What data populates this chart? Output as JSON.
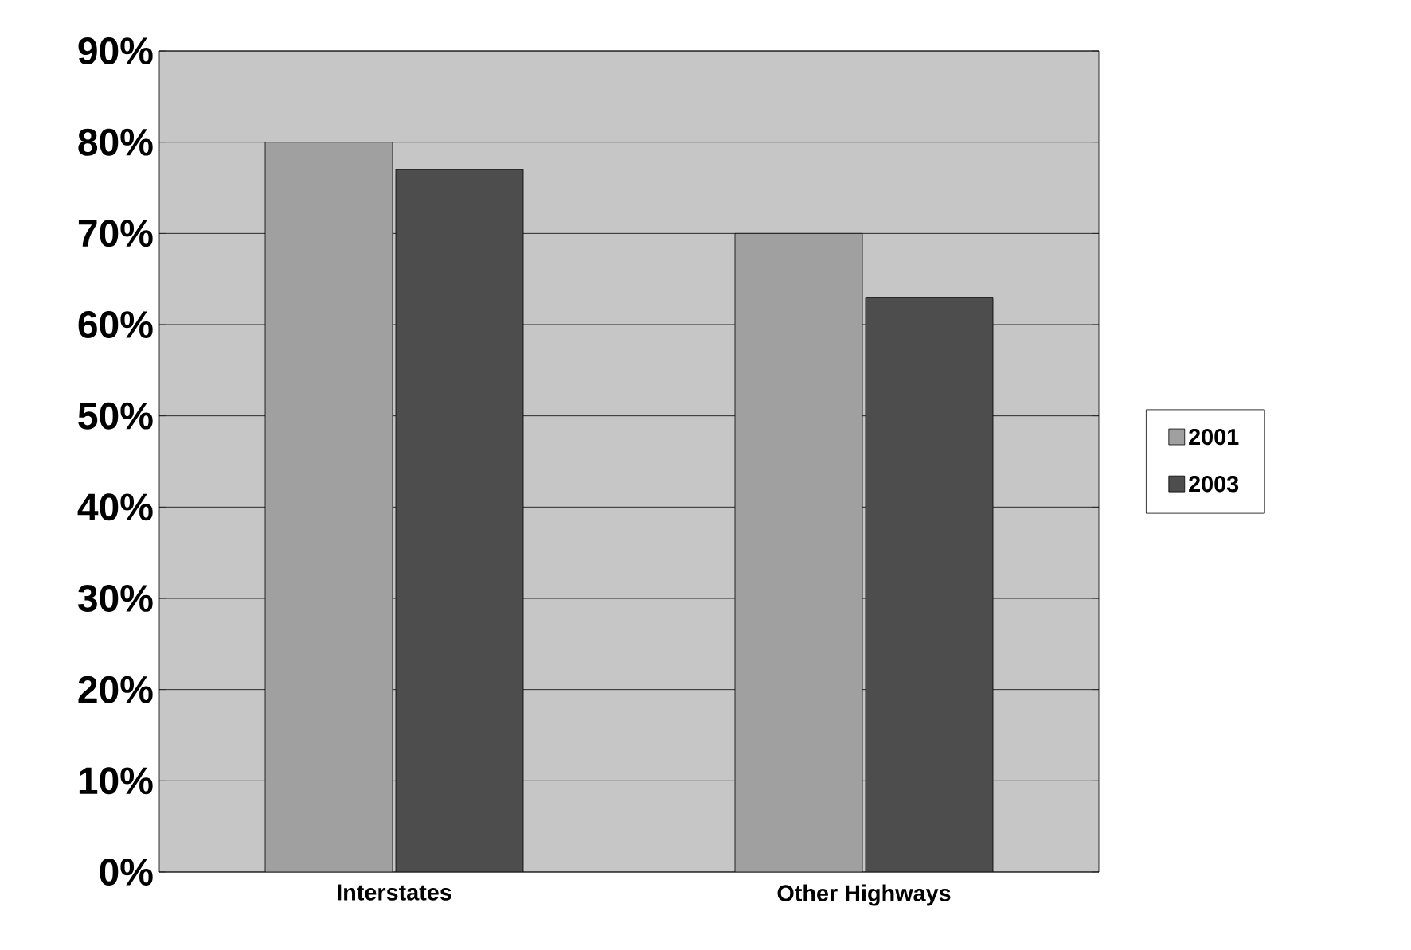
{
  "chart_data": {
    "type": "bar",
    "categories": [
      "Interstates",
      "Other Highways"
    ],
    "series": [
      {
        "name": "2001",
        "color": "#a0a0a0",
        "values": [
          80,
          70
        ]
      },
      {
        "name": "2003",
        "color": "#4d4d4d",
        "values": [
          77,
          63
        ]
      }
    ],
    "ylim": [
      0,
      90
    ],
    "yticks": [
      {
        "value": 0,
        "label": "0%"
      },
      {
        "value": 10,
        "label": "10%"
      },
      {
        "value": 20,
        "label": "20%"
      },
      {
        "value": 30,
        "label": "30%"
      },
      {
        "value": 40,
        "label": "40%"
      },
      {
        "value": 50,
        "label": "50%"
      },
      {
        "value": 60,
        "label": "60%"
      },
      {
        "value": 70,
        "label": "70%"
      },
      {
        "value": 80,
        "label": "80%"
      },
      {
        "value": 90,
        "label": "90%"
      }
    ],
    "grid": "y",
    "legend": "right"
  }
}
